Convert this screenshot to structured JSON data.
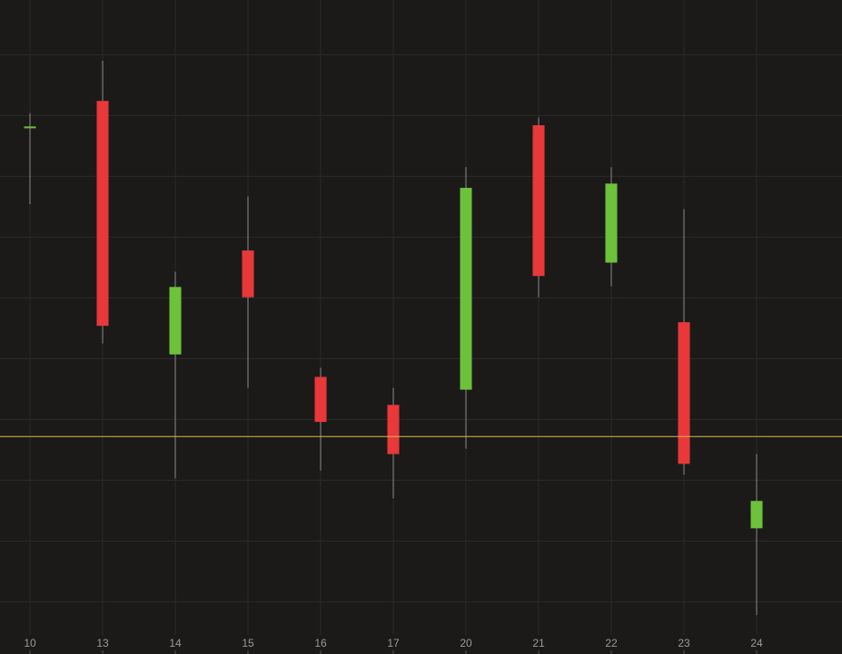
{
  "chart_data": {
    "type": "candlestick",
    "categories": [
      "10",
      "13",
      "14",
      "15",
      "16",
      "17",
      "20",
      "21",
      "22",
      "23",
      "24"
    ],
    "open": [
      8.82,
      9.24,
      5.07,
      6.78,
      4.7,
      4.24,
      4.49,
      8.84,
      6.58,
      5.6,
      2.21
    ],
    "high": [
      9.04,
      9.9,
      6.43,
      7.67,
      4.85,
      4.52,
      8.15,
      8.97,
      8.15,
      7.46,
      3.43
    ],
    "low": [
      7.54,
      5.25,
      3.03,
      4.52,
      3.16,
      2.7,
      3.52,
      6.01,
      6.19,
      3.09,
      0.78
    ],
    "close": [
      8.82,
      5.54,
      6.18,
      6.01,
      3.96,
      3.43,
      7.81,
      6.36,
      7.88,
      3.27,
      2.66
    ],
    "up_color": "#6cc23a",
    "down_color": "#e8383a",
    "ylim": [
      0.5,
      10.9
    ],
    "yticks": [
      1,
      2,
      3,
      4,
      5,
      6,
      7,
      8,
      9,
      10
    ],
    "grid": true,
    "reference_line": {
      "value": 3.72,
      "color": "#d9b850"
    }
  }
}
